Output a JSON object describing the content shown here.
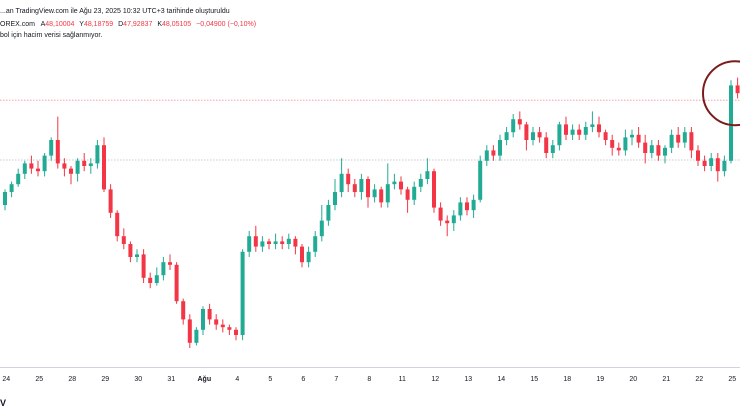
{
  "header": {
    "line1": "...an TradingView.com ile Ağu 23, 2025 10:32 UTC+3 tarihinde oluşturuldu",
    "line2_prefix": "OREX.com",
    "ohlc": [
      {
        "key": "A",
        "value": "48,10004"
      },
      {
        "key": "Y",
        "value": "48,18759"
      },
      {
        "key": "D",
        "value": "47,92837"
      },
      {
        "key": "K",
        "value": "48,05105"
      }
    ],
    "change": "−0,04900 (−0,10%)",
    "line3": "bol için hacim verisi sağlanmıyor."
  },
  "logo_text": "V",
  "chart_data": {
    "type": "candlestick",
    "title": "",
    "colors": {
      "up": "#22ab94",
      "down": "#f23645",
      "text": "#131722",
      "hline": "#f7a1a8",
      "hline2": "#c8ccd6",
      "circle": "#7a1c1c",
      "axis": "#d1d4dc"
    },
    "x_ticks": [
      {
        "label": "24",
        "t": 0.5
      },
      {
        "label": "25",
        "t": 5.5
      },
      {
        "label": "28",
        "t": 10.5
      },
      {
        "label": "29",
        "t": 15.5
      },
      {
        "label": "30",
        "t": 20.5
      },
      {
        "label": "31",
        "t": 25.5
      },
      {
        "label": "Ağu",
        "t": 30.5,
        "bold": true
      },
      {
        "label": "4",
        "t": 35.5
      },
      {
        "label": "5",
        "t": 40.5
      },
      {
        "label": "6",
        "t": 45.5
      },
      {
        "label": "7",
        "t": 50.5
      },
      {
        "label": "8",
        "t": 55.5
      },
      {
        "label": "11",
        "t": 60.5
      },
      {
        "label": "12",
        "t": 65.5
      },
      {
        "label": "13",
        "t": 70.5
      },
      {
        "label": "14",
        "t": 75.5
      },
      {
        "label": "15",
        "t": 80.5
      },
      {
        "label": "18",
        "t": 85.5
      },
      {
        "label": "19",
        "t": 90.5
      },
      {
        "label": "20",
        "t": 95.5
      },
      {
        "label": "21",
        "t": 100.5
      },
      {
        "label": "22",
        "t": 105.5
      },
      {
        "label": "25",
        "t": 110.5
      }
    ],
    "ylim": [
      0,
      100
    ],
    "hlines": [
      {
        "value": 90.5,
        "style": "pink"
      },
      {
        "value": 67.5,
        "style": "gray"
      }
    ],
    "highlight_candle": 110,
    "candles": [
      [
        50,
        55,
        48,
        56
      ],
      [
        55,
        58,
        53,
        59
      ],
      [
        58,
        62,
        57,
        64
      ],
      [
        62,
        66,
        60,
        67
      ],
      [
        66,
        64,
        62,
        69
      ],
      [
        64,
        63,
        61,
        67
      ],
      [
        63,
        69,
        61,
        70
      ],
      [
        69,
        75,
        67,
        76
      ],
      [
        75,
        66,
        64,
        84
      ],
      [
        66,
        64,
        61,
        68
      ],
      [
        64,
        62,
        58,
        65
      ],
      [
        62,
        67,
        59,
        68
      ],
      [
        67,
        65,
        63,
        70
      ],
      [
        65,
        66,
        62,
        68
      ],
      [
        66,
        73,
        64,
        75
      ],
      [
        73,
        56,
        55,
        76
      ],
      [
        56,
        47,
        45,
        58
      ],
      [
        47,
        38,
        36,
        48
      ],
      [
        38,
        35,
        33,
        41
      ],
      [
        35,
        30,
        28,
        36
      ],
      [
        30,
        31,
        28,
        33
      ],
      [
        31,
        22,
        20,
        33
      ],
      [
        22,
        20,
        18,
        24
      ],
      [
        20,
        23,
        19,
        26
      ],
      [
        23,
        28,
        21,
        30
      ],
      [
        28,
        27,
        25,
        31
      ],
      [
        27,
        13,
        12,
        28
      ],
      [
        13,
        6,
        4,
        14
      ],
      [
        6,
        -3,
        -5,
        8
      ],
      [
        -3,
        2,
        -4,
        3
      ],
      [
        2,
        10,
        0,
        11
      ],
      [
        10,
        6,
        4,
        12
      ],
      [
        6,
        4,
        2,
        8
      ],
      [
        4,
        3,
        1,
        6
      ],
      [
        3,
        2,
        0,
        4
      ],
      [
        2,
        0,
        -2,
        3
      ],
      [
        0,
        32,
        -2,
        33
      ],
      [
        32,
        38,
        30,
        40
      ],
      [
        38,
        34,
        32,
        42
      ],
      [
        34,
        36,
        32,
        38
      ],
      [
        36,
        35,
        33,
        37
      ],
      [
        35,
        36,
        33,
        39
      ],
      [
        36,
        35,
        33,
        38
      ],
      [
        35,
        37,
        33,
        39
      ],
      [
        37,
        34,
        31,
        38
      ],
      [
        34,
        28,
        26,
        35
      ],
      [
        28,
        32,
        26,
        34
      ],
      [
        32,
        38,
        30,
        40
      ],
      [
        38,
        44,
        36,
        50
      ],
      [
        44,
        50,
        42,
        52
      ],
      [
        50,
        55,
        48,
        60
      ],
      [
        55,
        62,
        53,
        68
      ],
      [
        62,
        58,
        55,
        64
      ],
      [
        58,
        55,
        53,
        60
      ],
      [
        55,
        60,
        52,
        62
      ],
      [
        60,
        53,
        49,
        61
      ],
      [
        53,
        56,
        51,
        58
      ],
      [
        56,
        51,
        49,
        57
      ],
      [
        51,
        58,
        49,
        66
      ],
      [
        58,
        59,
        56,
        62
      ],
      [
        59,
        56,
        54,
        61
      ],
      [
        56,
        52,
        47,
        57
      ],
      [
        52,
        57,
        50,
        59
      ],
      [
        57,
        60,
        55,
        62
      ],
      [
        60,
        63,
        58,
        68
      ],
      [
        63,
        49,
        47,
        64
      ],
      [
        49,
        44,
        42,
        51
      ],
      [
        44,
        43,
        38,
        46
      ],
      [
        43,
        46,
        40,
        48
      ],
      [
        46,
        51,
        44,
        53
      ],
      [
        51,
        48,
        46,
        53
      ],
      [
        48,
        52,
        45,
        54
      ],
      [
        52,
        67,
        51,
        69
      ],
      [
        67,
        71,
        65,
        73
      ],
      [
        71,
        69,
        67,
        73
      ],
      [
        69,
        75,
        67,
        77
      ],
      [
        75,
        78,
        73,
        80
      ],
      [
        78,
        83,
        76,
        85
      ],
      [
        83,
        81,
        79,
        86
      ],
      [
        81,
        75,
        71,
        82
      ],
      [
        75,
        78,
        73,
        80
      ],
      [
        78,
        76,
        74,
        80
      ],
      [
        76,
        70,
        68,
        78
      ],
      [
        70,
        73,
        68,
        75
      ],
      [
        73,
        81,
        71,
        82
      ],
      [
        81,
        77,
        75,
        84
      ],
      [
        77,
        79,
        75,
        81
      ],
      [
        79,
        77,
        75,
        81
      ],
      [
        77,
        80,
        75,
        82
      ],
      [
        80,
        81,
        78,
        86
      ],
      [
        81,
        78,
        76,
        84
      ],
      [
        78,
        75,
        73,
        79
      ],
      [
        75,
        72,
        69,
        77
      ],
      [
        72,
        71,
        69,
        74
      ],
      [
        71,
        76,
        69,
        79
      ],
      [
        76,
        77,
        73,
        79
      ],
      [
        77,
        74,
        72,
        80
      ],
      [
        74,
        70,
        66,
        77
      ],
      [
        70,
        73,
        68,
        75
      ],
      [
        73,
        69,
        67,
        75
      ],
      [
        69,
        72,
        66,
        73
      ],
      [
        72,
        77,
        70,
        79
      ],
      [
        77,
        74,
        72,
        80
      ],
      [
        74,
        78,
        72,
        80
      ],
      [
        78,
        71,
        68,
        80
      ],
      [
        71,
        67,
        65,
        73
      ],
      [
        67,
        65,
        63,
        69
      ],
      [
        65,
        68,
        63,
        70
      ],
      [
        68,
        63,
        59,
        70
      ],
      [
        63,
        67,
        61,
        69
      ],
      [
        67,
        96,
        66,
        98
      ],
      [
        96,
        93,
        91,
        99
      ]
    ]
  }
}
